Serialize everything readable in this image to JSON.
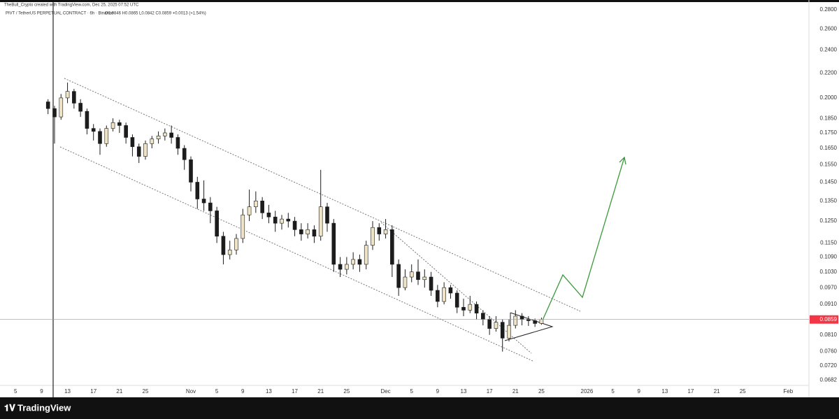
{
  "chart_data": {
    "type": "candlestick",
    "title": "TheBull_Crypto created with TradingView.com, Dec 25, 2025 07:52 UTC",
    "subtitle": "PIVT / TetherUS PERPETUAL CONTRACT · 6h · Binance",
    "ohlc_text": "O0.0846 H0.0865 L0.0842 C0.0859 +0.0013 (+1.54%)",
    "brand": "TradingView",
    "log_scale": true,
    "grid": false,
    "up_color": "#efe4c6",
    "down_color": "#1c1c1c",
    "last_price": 0.0859,
    "last_price_color": "#f23645",
    "xlim": [
      2.6,
      127.2
    ],
    "ylim": [
      0.0668,
      0.2905
    ],
    "xticks": [
      5,
      9,
      13,
      17,
      21,
      25,
      {
        "value": 32,
        "label": "Nov"
      },
      {
        "value": 36,
        "label": "5"
      },
      {
        "value": 40,
        "label": "9"
      },
      {
        "value": 44,
        "label": "13"
      },
      {
        "value": 48,
        "label": "17"
      },
      {
        "value": 52,
        "label": "21"
      },
      {
        "value": 56,
        "label": "25"
      },
      {
        "value": 62,
        "label": "Dec"
      },
      {
        "value": 66,
        "label": "5"
      },
      {
        "value": 70,
        "label": "9"
      },
      {
        "value": 74,
        "label": "13"
      },
      {
        "value": 78,
        "label": "17"
      },
      {
        "value": 82,
        "label": "21"
      },
      {
        "value": 86,
        "label": "25"
      },
      {
        "value": 93,
        "label": "2026"
      },
      {
        "value": 97,
        "label": "5"
      },
      {
        "value": 101,
        "label": "9"
      },
      {
        "value": 105,
        "label": "13"
      },
      {
        "value": 109,
        "label": "17"
      },
      {
        "value": 113,
        "label": "21"
      },
      {
        "value": 117,
        "label": "25"
      },
      {
        "value": 124,
        "label": "Feb"
      }
    ],
    "yticks": [
      0.0682,
      {
        "value": 0.072,
        "label": "0.0720"
      },
      {
        "value": 0.076,
        "label": "0.0760"
      },
      {
        "value": 0.081,
        "label": "0.0810"
      },
      {
        "value": 0.091,
        "label": "0.0910"
      },
      {
        "value": 0.097,
        "label": "0.0970"
      },
      {
        "value": 0.103,
        "label": "0.1030"
      },
      {
        "value": 0.109,
        "label": "0.1090"
      },
      {
        "value": 0.115,
        "label": "0.1150"
      },
      {
        "value": 0.125,
        "label": "0.1250"
      },
      {
        "value": 0.135,
        "label": "0.1350"
      },
      {
        "value": 0.145,
        "label": "0.1450"
      },
      {
        "value": 0.155,
        "label": "0.1550"
      },
      {
        "value": 0.165,
        "label": "0.1650"
      },
      {
        "value": 0.175,
        "label": "0.1750"
      },
      {
        "value": 0.185,
        "label": "0.1850"
      },
      {
        "value": 0.2,
        "label": "0.2000"
      },
      {
        "value": 0.22,
        "label": "0.2200"
      },
      {
        "value": 0.24,
        "label": "0.2400"
      },
      {
        "value": 0.26,
        "label": "0.2600"
      },
      {
        "value": 0.28,
        "label": "0.2800"
      }
    ],
    "x": [
      10,
      11,
      12,
      13,
      14,
      15,
      16,
      17,
      18,
      19,
      20,
      21,
      22,
      23,
      24,
      25,
      26,
      27,
      28,
      29,
      30,
      31,
      32,
      33,
      34,
      35,
      36,
      37,
      38,
      39,
      40,
      41,
      42,
      43,
      44,
      45,
      46,
      47,
      48,
      49,
      50,
      51,
      52,
      53,
      54,
      55,
      56,
      57,
      58,
      59,
      60,
      61,
      62,
      63,
      64,
      65,
      66,
      67,
      68,
      69,
      70,
      71,
      72,
      73,
      74,
      75,
      76,
      77,
      78,
      79,
      80,
      81,
      82,
      83,
      84,
      85,
      86
    ],
    "open": [
      0.197,
      0.192,
      0.186,
      0.2,
      0.205,
      0.196,
      0.19,
      0.178,
      0.176,
      0.168,
      0.178,
      0.182,
      0.18,
      0.172,
      0.166,
      0.16,
      0.168,
      0.171,
      0.173,
      0.175,
      0.172,
      0.165,
      0.158,
      0.145,
      0.136,
      0.134,
      0.13,
      0.118,
      0.11,
      0.112,
      0.117,
      0.128,
      0.132,
      0.135,
      0.129,
      0.127,
      0.124,
      0.126,
      0.125,
      0.121,
      0.119,
      0.121,
      0.118,
      0.132,
      0.124,
      0.106,
      0.104,
      0.106,
      0.108,
      0.106,
      0.114,
      0.122,
      0.119,
      0.121,
      0.106,
      0.097,
      0.101,
      0.103,
      0.1,
      0.101,
      0.096,
      0.092,
      0.097,
      0.095,
      0.09,
      0.089,
      0.091,
      0.088,
      0.086,
      0.083,
      0.085,
      0.08,
      0.084,
      0.087,
      0.086,
      0.0855,
      0.0846
    ],
    "high": [
      0.199,
      0.194,
      0.203,
      0.212,
      0.207,
      0.199,
      0.192,
      0.181,
      0.178,
      0.18,
      0.185,
      0.184,
      0.182,
      0.174,
      0.168,
      0.17,
      0.173,
      0.176,
      0.178,
      0.18,
      0.174,
      0.167,
      0.16,
      0.148,
      0.146,
      0.137,
      0.132,
      0.12,
      0.116,
      0.119,
      0.131,
      0.141,
      0.14,
      0.137,
      0.133,
      0.13,
      0.128,
      0.129,
      0.127,
      0.124,
      0.124,
      0.123,
      0.152,
      0.134,
      0.126,
      0.109,
      0.109,
      0.111,
      0.11,
      0.116,
      0.125,
      0.124,
      0.126,
      0.123,
      0.108,
      0.104,
      0.106,
      0.108,
      0.104,
      0.103,
      0.098,
      0.099,
      0.098,
      0.096,
      0.093,
      0.094,
      0.092,
      0.089,
      0.087,
      0.087,
      0.086,
      0.086,
      0.089,
      0.088,
      0.087,
      0.0862,
      0.0865
    ],
    "low": [
      0.188,
      0.168,
      0.184,
      0.196,
      0.192,
      0.186,
      0.174,
      0.17,
      0.161,
      0.166,
      0.176,
      0.175,
      0.168,
      0.16,
      0.156,
      0.158,
      0.165,
      0.168,
      0.17,
      0.168,
      0.161,
      0.152,
      0.14,
      0.131,
      0.13,
      0.124,
      0.115,
      0.106,
      0.108,
      0.11,
      0.115,
      0.125,
      0.129,
      0.126,
      0.124,
      0.12,
      0.121,
      0.122,
      0.118,
      0.116,
      0.117,
      0.115,
      0.116,
      0.12,
      0.103,
      0.101,
      0.102,
      0.104,
      0.103,
      0.104,
      0.112,
      0.116,
      0.117,
      0.101,
      0.094,
      0.096,
      0.099,
      0.098,
      0.097,
      0.094,
      0.09,
      0.091,
      0.093,
      0.088,
      0.087,
      0.088,
      0.086,
      0.084,
      0.081,
      0.082,
      0.076,
      0.079,
      0.083,
      0.084,
      0.0838,
      0.0835,
      0.0842
    ],
    "close": [
      0.192,
      0.186,
      0.2,
      0.205,
      0.196,
      0.19,
      0.178,
      0.176,
      0.168,
      0.178,
      0.182,
      0.18,
      0.172,
      0.166,
      0.16,
      0.168,
      0.171,
      0.173,
      0.175,
      0.172,
      0.165,
      0.158,
      0.145,
      0.136,
      0.134,
      0.13,
      0.118,
      0.11,
      0.112,
      0.117,
      0.128,
      0.132,
      0.135,
      0.129,
      0.127,
      0.124,
      0.126,
      0.125,
      0.121,
      0.119,
      0.121,
      0.118,
      0.132,
      0.124,
      0.106,
      0.104,
      0.106,
      0.108,
      0.106,
      0.114,
      0.122,
      0.119,
      0.121,
      0.106,
      0.097,
      0.101,
      0.103,
      0.1,
      0.101,
      0.096,
      0.092,
      0.097,
      0.095,
      0.09,
      0.089,
      0.091,
      0.088,
      0.086,
      0.083,
      0.085,
      0.08,
      0.084,
      0.087,
      0.086,
      0.0855,
      0.0846,
      0.0859
    ]
  }
}
